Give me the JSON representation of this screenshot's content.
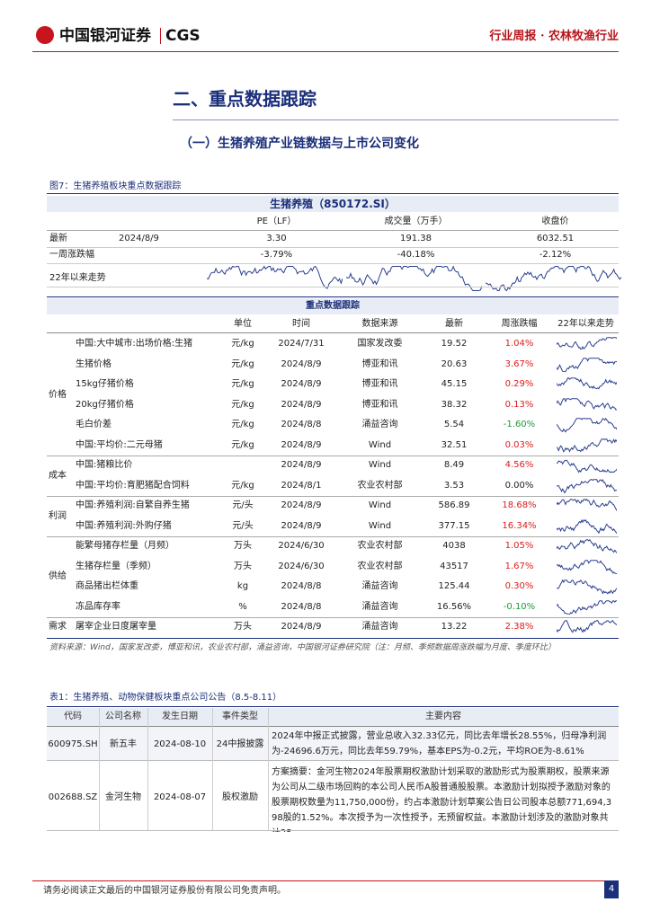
{
  "header": {
    "logo": "中国银河证券",
    "logo_en": "CGS",
    "right": "行业周报 · 农林牧渔行业"
  },
  "section_title": "二、重点数据跟踪",
  "subsection_title": "（一）生猪养殖产业链数据与上市公司变化",
  "figure": {
    "caption": "图7：生猪养殖板块重点数据跟踪",
    "index_table": {
      "title": "生猪养殖（850172.SI）",
      "columns": [
        "PE（LF）",
        "成交量（万手）",
        "收盘价"
      ],
      "rows": [
        {
          "label": "最新",
          "date": "2024/8/9",
          "values": [
            "3.30",
            "191.38",
            "6032.51"
          ]
        },
        {
          "label": "一周涨跌幅",
          "values": [
            "-3.79%",
            "-40.18%",
            "-2.12%"
          ]
        },
        {
          "label": "22年以来走势"
        }
      ]
    },
    "tracking": {
      "title": "重点数据跟踪",
      "columns": [
        "单位",
        "时间",
        "数据来源",
        "最新",
        "周涨跌幅",
        "22年以来走势"
      ],
      "groups": [
        {
          "name": "价格",
          "rows": [
            [
              "中国:大中城市:出场价格:生猪",
              "元/kg",
              "2024/7/31",
              "国家发改委",
              "19.52",
              "1.04%"
            ],
            [
              "生猪价格",
              "元/kg",
              "2024/8/9",
              "博亚和讯",
              "20.63",
              "3.67%"
            ],
            [
              "15kg仔猪价格",
              "元/kg",
              "2024/8/9",
              "博亚和讯",
              "45.15",
              "0.29%"
            ],
            [
              "20kg仔猪价格",
              "元/kg",
              "2024/8/9",
              "博亚和讯",
              "38.32",
              "0.13%"
            ],
            [
              "毛白价差",
              "元/kg",
              "2024/8/8",
              "涌益咨询",
              "5.54",
              "-1.60%"
            ],
            [
              "中国:平均价:二元母猪",
              "元/kg",
              "2024/8/9",
              "Wind",
              "32.51",
              "0.03%"
            ]
          ]
        },
        {
          "name": "成本",
          "rows": [
            [
              "中国:猪粮比价",
              null,
              "2024/8/9",
              "Wind",
              "8.49",
              "4.56%"
            ],
            [
              "中国:平均价:育肥猪配合饲料",
              "元/kg",
              "2024/8/1",
              "农业农村部",
              "3.53",
              "0.00%"
            ]
          ]
        },
        {
          "name": "利润",
          "rows": [
            [
              "中国:养殖利润:自繁自养生猪",
              "元/头",
              "2024/8/9",
              "Wind",
              "586.89",
              "18.68%"
            ],
            [
              "中国:养殖利润:外购仔猪",
              "元/头",
              "2024/8/9",
              "Wind",
              "377.15",
              "16.34%"
            ]
          ]
        },
        {
          "name": "供给",
          "rows": [
            [
              "能繁母猪存栏量（月频）",
              "万头",
              "2024/6/30",
              "农业农村部",
              "4038",
              "1.05%"
            ],
            [
              "生猪存栏量（季频）",
              "万头",
              "2024/6/30",
              "农业农村部",
              "43517",
              "1.67%"
            ],
            [
              "商品猪出栏体重",
              "kg",
              "2024/8/8",
              "涌益咨询",
              "125.44",
              "0.30%"
            ],
            [
              "冻品库存率",
              "%",
              "2024/8/8",
              "涌益咨询",
              "16.56%",
              "-0.10%"
            ]
          ]
        },
        {
          "name": "需求",
          "rows": [
            [
              "屠宰企业日度屠宰量",
              "万头",
              "2024/8/9",
              "涌益咨询",
              "13.22",
              "2.38%"
            ]
          ]
        }
      ]
    },
    "source": "资料来源：Wind，国家发改委，博亚和讯，农业农村部，涌益咨询，中国银河证券研究院（注：月频、季频数据周涨跌幅为月度、季度环比）"
  },
  "table": {
    "caption": "表1：生猪养殖、动物保健板块重点公司公告（8.5-8.11）",
    "columns": [
      "代码",
      "公司名称",
      "发生日期",
      "事件类型",
      "主要内容"
    ],
    "rows": [
      [
        "600975.SH",
        "新五丰",
        "2024-08-10",
        "24中报披露",
        "2024年中报正式披露，营业总收入32.33亿元，同比去年增长28.55%，归母净利润为-24696.6万元，同比去年59.79%，基本EPS为-0.2元，平均ROE为-8.61%"
      ],
      [
        "002688.SZ",
        "金河生物",
        "2024-08-07",
        "股权激励",
        "方案摘要：金河生物2024年股票期权激励计划采取的激励形式为股票期权，股票来源为公司从二级市场回购的本公司人民币A股普通股股票。本激励计划拟授予激励对象的股票期权数量为11,750,000份，约占本激励计划草案公告日公司股本总额771,694,398股的1.52%。本次授予为一次性授予，无预留权益。本激励计划涉及的激励对象共计25"
      ]
    ]
  },
  "footer": {
    "disclaimer": "请务必阅读正文最后的中国银河证券股份有限公司免责声明。",
    "page": "4"
  }
}
